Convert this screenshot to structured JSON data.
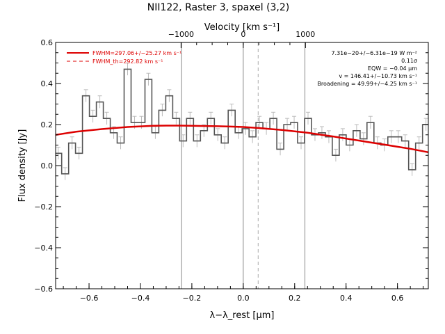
{
  "chart_data": {
    "type": "line",
    "title": "NII122, Raster 3, spaxel (3,2)",
    "xlabel": "λ−λ_rest [μm]",
    "ylabel": "Flux density [Jy]",
    "top_xlabel": "Velocity [km s⁻¹]",
    "xlim": [
      -0.73,
      0.72
    ],
    "ylim": [
      -0.6,
      0.6
    ],
    "x_ticks": [
      -0.6,
      -0.4,
      -0.2,
      0.0,
      0.2,
      0.4,
      0.6
    ],
    "x_tick_labels": [
      "−0.6",
      "−0.4",
      "−0.2",
      "0.0",
      "0.2",
      "0.4",
      "0.6"
    ],
    "y_ticks": [
      -0.6,
      -0.4,
      -0.2,
      0.0,
      0.2,
      0.4,
      0.6
    ],
    "y_tick_labels": [
      "−0.6",
      "−0.4",
      "−0.2",
      "0.0",
      "0.2",
      "0.4",
      "0.6"
    ],
    "top_x_ticks_lambda": [
      -0.242,
      0.242
    ],
    "top_x_tick_labels": [
      "−1000",
      "1000"
    ],
    "top_zero_label": "0",
    "legend": [
      {
        "text": "FWHM=297.06+/−25.27 km s⁻¹",
        "style": "solid",
        "color": "#dd0000"
      },
      {
        "text": "FWHM_th=292.82 km s⁻¹",
        "style": "dashed",
        "color": "#dd0000"
      }
    ],
    "legend_position": "top-left",
    "stats": [
      "7.31e−20+/−6.31e−19 W m⁻²",
      "0.11σ",
      "EQW = −0.04 μm",
      "v = 146.41+/−10.73 km s⁻¹",
      "Broadening = 49.99+/−4.25 km s⁻¹"
    ],
    "stats_position": "top-right",
    "vlines_solid": [
      -0.24,
      0.0,
      0.24
    ],
    "vline_dashed": 0.058,
    "bin_width": 0.027,
    "spectrum": {
      "name": "data",
      "color": "#555555",
      "x": [
        -0.72,
        -0.693,
        -0.666,
        -0.639,
        -0.612,
        -0.585,
        -0.558,
        -0.531,
        -0.504,
        -0.477,
        -0.45,
        -0.423,
        -0.396,
        -0.369,
        -0.342,
        -0.315,
        -0.288,
        -0.261,
        -0.234,
        -0.207,
        -0.18,
        -0.153,
        -0.126,
        -0.099,
        -0.072,
        -0.045,
        -0.018,
        0.009,
        0.036,
        0.063,
        0.09,
        0.117,
        0.144,
        0.171,
        0.198,
        0.225,
        0.252,
        0.279,
        0.306,
        0.333,
        0.36,
        0.387,
        0.414,
        0.441,
        0.468,
        0.495,
        0.522,
        0.549,
        0.576,
        0.603,
        0.63,
        0.657,
        0.684,
        0.711
      ],
      "y": [
        0.06,
        -0.04,
        0.11,
        0.06,
        0.34,
        0.24,
        0.31,
        0.23,
        0.16,
        0.11,
        0.47,
        0.21,
        0.21,
        0.42,
        0.16,
        0.27,
        0.34,
        0.23,
        0.12,
        0.23,
        0.12,
        0.17,
        0.23,
        0.15,
        0.11,
        0.27,
        0.16,
        0.18,
        0.14,
        0.21,
        0.18,
        0.23,
        0.08,
        0.2,
        0.21,
        0.11,
        0.23,
        0.15,
        0.16,
        0.14,
        0.05,
        0.15,
        0.1,
        0.17,
        0.13,
        0.21,
        0.11,
        0.1,
        0.14,
        0.14,
        0.12,
        -0.02,
        0.11,
        0.2
      ],
      "err": [
        0.03,
        0.03,
        0.03,
        0.03,
        0.03,
        0.03,
        0.03,
        0.03,
        0.03,
        0.03,
        0.03,
        0.03,
        0.03,
        0.03,
        0.03,
        0.03,
        0.03,
        0.03,
        0.03,
        0.03,
        0.03,
        0.03,
        0.03,
        0.03,
        0.03,
        0.03,
        0.03,
        0.03,
        0.03,
        0.03,
        0.03,
        0.03,
        0.03,
        0.03,
        0.03,
        0.03,
        0.03,
        0.03,
        0.03,
        0.03,
        0.03,
        0.03,
        0.03,
        0.03,
        0.03,
        0.03,
        0.03,
        0.03,
        0.03,
        0.03,
        0.03,
        0.03,
        0.03,
        0.03
      ]
    },
    "fit": {
      "name": "fit",
      "color": "#dd0000",
      "x": [
        -0.73,
        -0.65,
        -0.55,
        -0.45,
        -0.35,
        -0.3,
        -0.25,
        -0.2,
        -0.15,
        -0.1,
        -0.05,
        0.0,
        0.05,
        0.1,
        0.15,
        0.2,
        0.25,
        0.3,
        0.35,
        0.4,
        0.45,
        0.5,
        0.55,
        0.6,
        0.65,
        0.72
      ],
      "y": [
        0.15,
        0.165,
        0.178,
        0.188,
        0.194,
        0.195,
        0.195,
        0.194,
        0.193,
        0.192,
        0.19,
        0.188,
        0.184,
        0.179,
        0.174,
        0.167,
        0.16,
        0.151,
        0.142,
        0.132,
        0.122,
        0.112,
        0.102,
        0.092,
        0.082,
        0.065
      ]
    }
  }
}
